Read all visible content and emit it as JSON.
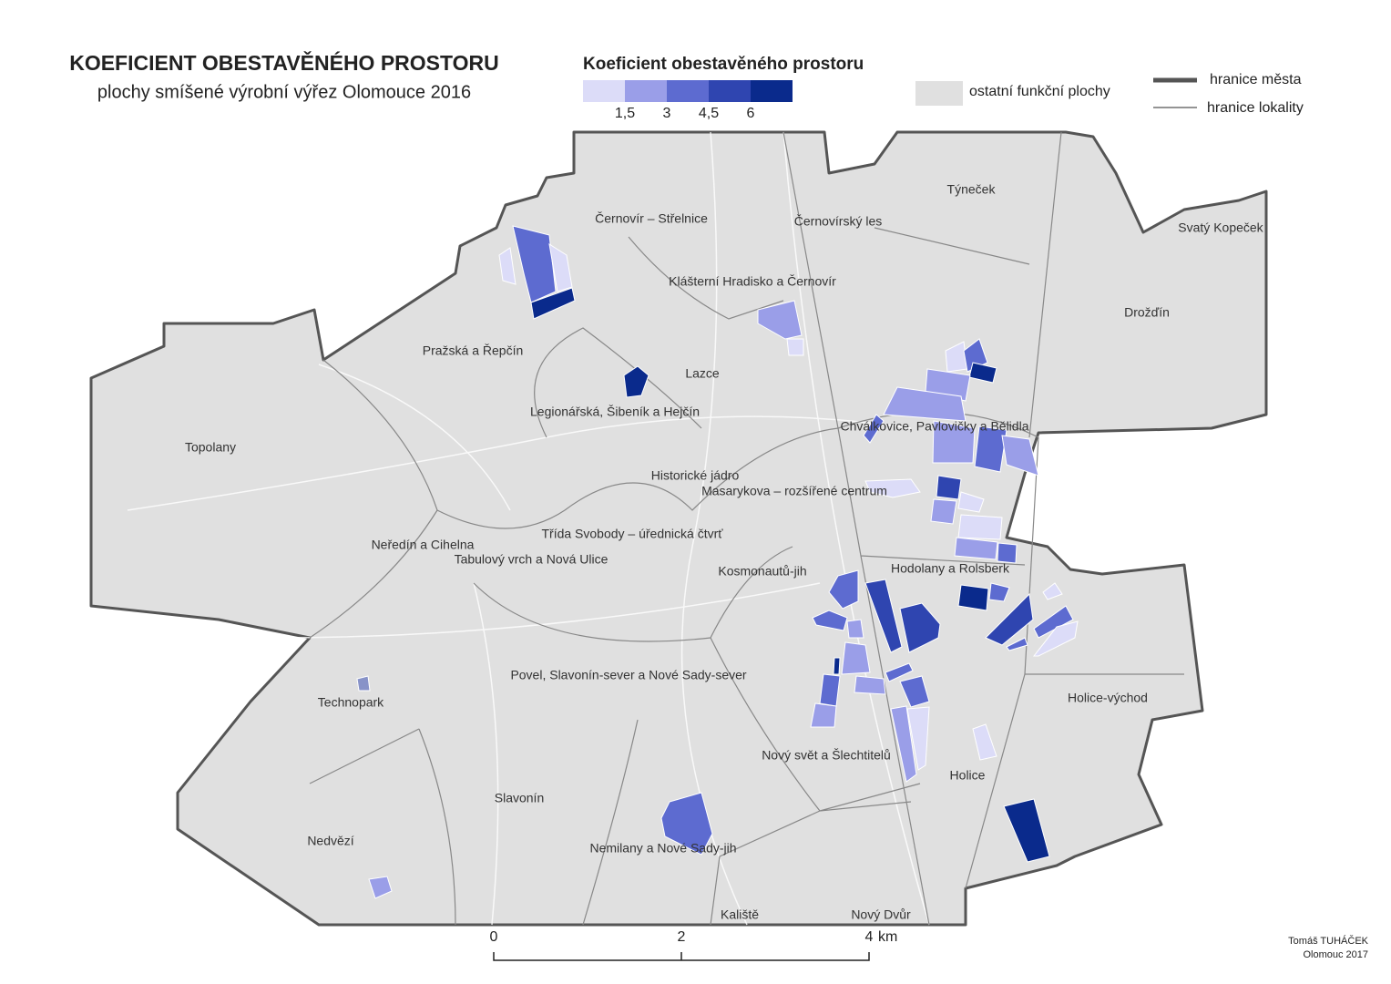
{
  "title": "KOEFICIENT OBESTAVĚNÉHO PROSTORU",
  "subtitle": "plochy smíšené výrobní výřez Olomouce 2016",
  "legend": {
    "title": "Koeficient obestavěného prostoru",
    "colors": [
      "#dcdcf8",
      "#9a9ee8",
      "#5d6bd0",
      "#2f45b0",
      "#0a2a8c"
    ],
    "breaks": [
      "1,5",
      "3",
      "4,5",
      "6"
    ],
    "other_area": "ostatní funkční plochy",
    "city_boundary": "hranice města",
    "locality_boundary": "hranice lokality"
  },
  "localities": [
    "Černovír – Střelnice",
    "Černovírský les",
    "Týneček",
    "Svatý Kopeček",
    "Klášterní Hradisko a Černovír",
    "Drožďín",
    "Pražská a Řepčín",
    "Lazce",
    "Legionářská, Šibeník a Hejčín",
    "Chválkovice, Pavlovičky a Bělidla",
    "Topolany",
    "Historické jádro",
    "Masarykova – rozšířené centrum",
    "Třída Svobody – úřednická čtvrť",
    "Neředín a Cihelna",
    "Tabulový vrch a Nová Ulice",
    "Kosmonautů-jih",
    "Hodolany a Rolsberk",
    "Povel, Slavonín-sever a Nové Sady-sever",
    "Technopark",
    "Holice-východ",
    "Nový svět a Šlechtitelů",
    "Holice",
    "Slavonín",
    "Nedvězí",
    "Nemilany a Nové Sady-jih",
    "Kaliště",
    "Nový Dvůr"
  ],
  "scale_bar": {
    "labels": [
      "0",
      "2",
      "4"
    ],
    "unit": "km"
  },
  "credits": [
    "Tomáš TUHÁČEK",
    "Olomouc 2017"
  ]
}
